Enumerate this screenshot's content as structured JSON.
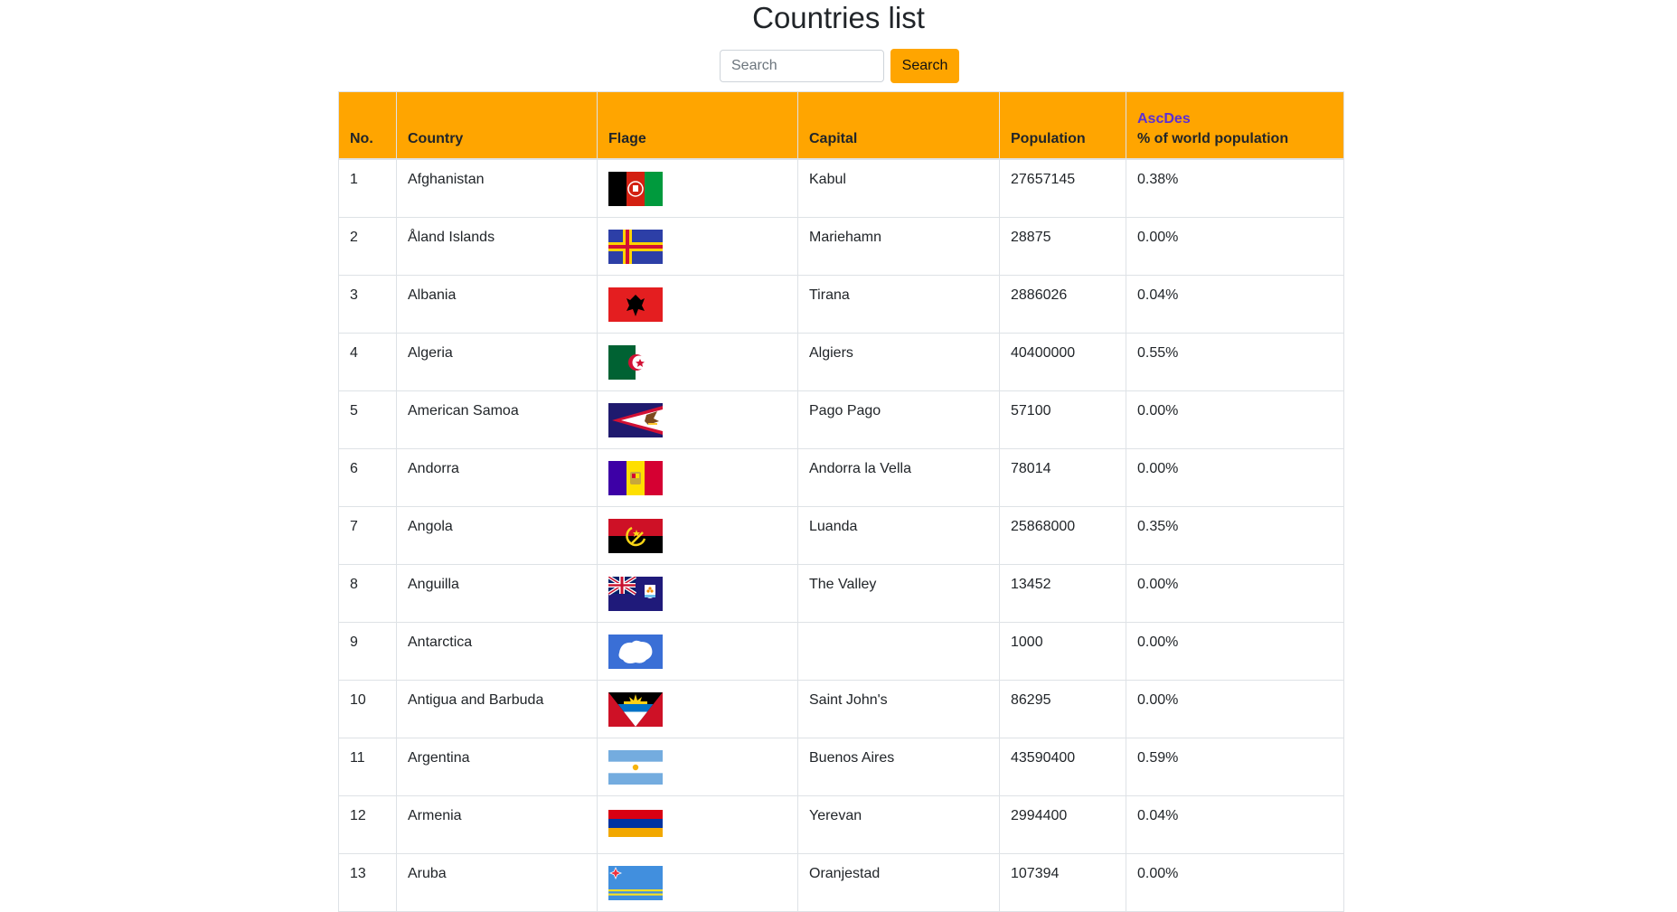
{
  "page": {
    "title": "Countries list"
  },
  "search": {
    "placeholder": "Search",
    "button_label": "Search"
  },
  "table": {
    "sort": {
      "asc_label": "Asc",
      "desc_label": "Des"
    },
    "headers": {
      "no": "No.",
      "country": "Country",
      "flag": "Flage",
      "capital": "Capital",
      "population": "Population",
      "percent": "% of world population"
    },
    "rows": [
      {
        "no": "1",
        "country": "Afghanistan",
        "flag": "afghanistan-flag-icon",
        "capital": "Kabul",
        "population": "27657145",
        "percent": "0.38%",
        "h": 54
      },
      {
        "no": "2",
        "country": "Åland Islands",
        "flag": "aland-islands-flag-icon",
        "capital": "Mariehamn",
        "population": "28875",
        "percent": "0.00%",
        "h": 54
      },
      {
        "no": "3",
        "country": "Albania",
        "flag": "albania-flag-icon",
        "capital": "Tirana",
        "population": "2886026",
        "percent": "0.04%",
        "h": 57
      },
      {
        "no": "4",
        "country": "Algeria",
        "flag": "algeria-flag-icon",
        "capital": "Algiers",
        "population": "40400000",
        "percent": "0.55%",
        "h": 54
      },
      {
        "no": "5",
        "country": "American Samoa",
        "flag": "american-samoa-flag-icon",
        "capital": "Pago Pago",
        "population": "57100",
        "percent": "0.00%",
        "h": 46
      },
      {
        "no": "6",
        "country": "Andorra",
        "flag": "andorra-flag-icon",
        "capital": "Andorra la Vella",
        "population": "78014",
        "percent": "0.00%",
        "h": 56
      },
      {
        "no": "7",
        "country": "Angola",
        "flag": "angola-flag-icon",
        "capital": "Luanda",
        "population": "25868000",
        "percent": "0.35%",
        "h": 54
      },
      {
        "no": "8",
        "country": "Anguilla",
        "flag": "anguilla-flag-icon",
        "capital": "The Valley",
        "population": "13452",
        "percent": "0.00%",
        "h": 46
      },
      {
        "no": "9",
        "country": "Antarctica",
        "flag": "antarctica-flag-icon",
        "capital": "",
        "population": "1000",
        "percent": "0.00%",
        "h": 54
      },
      {
        "no": "10",
        "country": "Antigua and Barbuda",
        "flag": "antigua-and-barbuda-flag-icon",
        "capital": "Saint John's",
        "population": "86295",
        "percent": "0.00%",
        "h": 54
      },
      {
        "no": "11",
        "country": "Argentina",
        "flag": "argentina-flag-icon",
        "capital": "Buenos Aires",
        "population": "43590400",
        "percent": "0.59%",
        "h": 52
      },
      {
        "no": "12",
        "country": "Armenia",
        "flag": "armenia-flag-icon",
        "capital": "Yerevan",
        "population": "2994400",
        "percent": "0.04%",
        "h": 46
      },
      {
        "no": "13",
        "country": "Aruba",
        "flag": "aruba-flag-icon",
        "capital": "Oranjestad",
        "population": "107394",
        "percent": "0.00%",
        "h": 54
      }
    ]
  }
}
